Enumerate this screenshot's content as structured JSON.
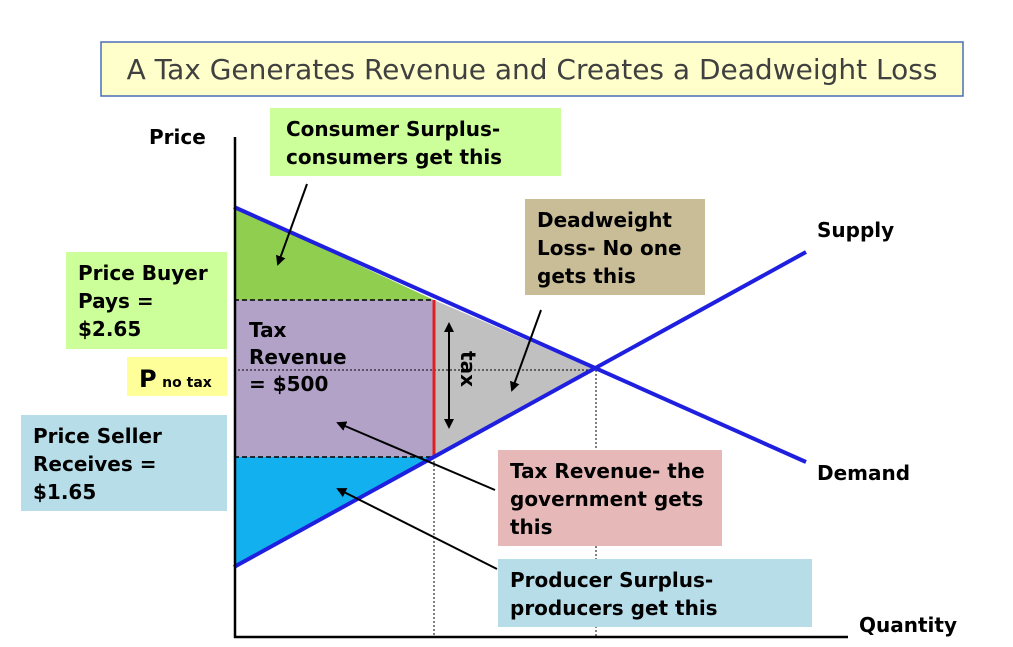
{
  "title": "A Tax Generates Revenue and Creates a Deadweight Loss",
  "axes": {
    "y_label": "Price",
    "x_label": "Quantity"
  },
  "curves": {
    "supply_label": "Supply",
    "demand_label": "Demand"
  },
  "callouts": {
    "consumer_surplus": [
      "Consumer Surplus-",
      "consumers get this"
    ],
    "deadweight_loss": [
      "Deadweight",
      "Loss- No one",
      "gets this"
    ],
    "tax_revenue_note": [
      "Tax Revenue- the",
      "government gets",
      "this"
    ],
    "producer_surplus": [
      "Producer Surplus-",
      "producers get this"
    ]
  },
  "price_labels": {
    "buyer_pays": [
      "Price Buyer",
      "Pays =",
      "$2.65"
    ],
    "no_tax_main": "P",
    "no_tax_sub": "no tax",
    "seller_receives": [
      "Price Seller",
      "Receives =",
      "$1.65"
    ]
  },
  "regions": {
    "tax_revenue": [
      "Tax",
      "Revenue",
      "= $500"
    ],
    "tax_wedge": "tax"
  },
  "colors": {
    "curve": "#1f1fe0",
    "consumer_surplus": "#8fce4e",
    "tax_revenue_area": "#b3a2c8",
    "deadweight_area": "#c0c0c0",
    "producer_surplus": "#12b0ef",
    "wedge": "#e02020",
    "title_box": "#ffffcc",
    "cs_box": "#ccff99",
    "dwl_box": "#c9bd98",
    "tr_box": "#e6b8b7",
    "ps_box": "#b7dde8",
    "buyer_box": "#ccff99",
    "notax_box": "#ffff99",
    "seller_box": "#b7dde8"
  }
}
